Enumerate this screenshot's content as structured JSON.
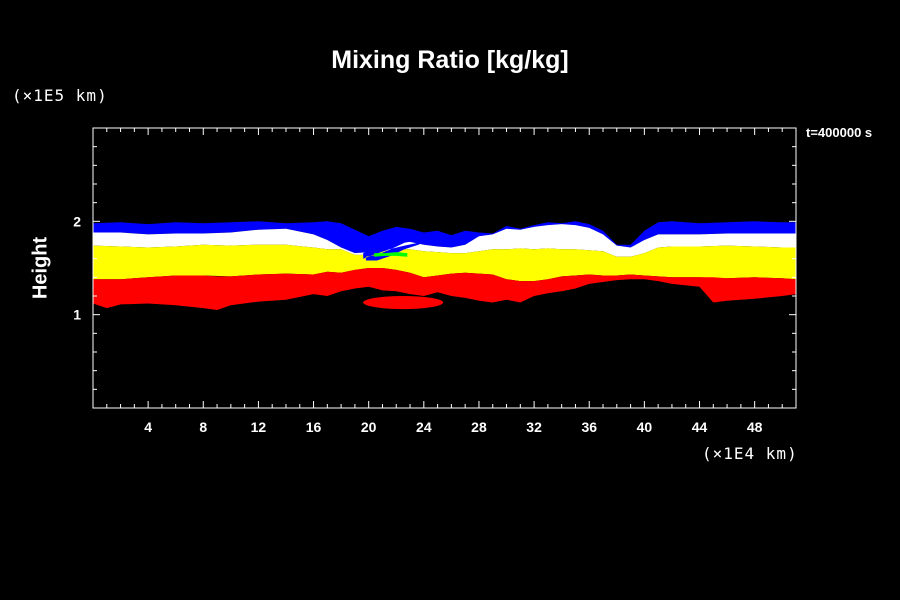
{
  "chart_data": {
    "type": "heatmap",
    "title": "Mixing Ratio [kg/kg]",
    "ylabel": "Height",
    "xlabel": "",
    "x_unit": "(×1E4 km)",
    "y_unit": "(×1E5 km)",
    "time_label": "t=400000 s",
    "xlim": [
      0,
      51
    ],
    "ylim": [
      0,
      3
    ],
    "x_ticks": [
      4,
      8,
      12,
      16,
      20,
      24,
      28,
      32,
      36,
      40,
      44,
      48
    ],
    "y_ticks": [
      1,
      2
    ],
    "background_color": "#000000",
    "bands": [
      {
        "color": "#0000ff",
        "x": [
          0,
          2,
          4,
          6,
          8,
          10,
          12,
          14,
          16,
          17,
          18,
          19,
          20,
          21,
          22,
          23,
          24,
          25,
          26,
          27,
          28,
          29,
          30,
          31,
          32,
          33,
          34,
          35,
          36,
          37,
          38,
          39,
          40,
          41,
          42,
          44,
          46,
          48,
          50,
          51
        ],
        "top": [
          1.98,
          1.99,
          1.97,
          1.99,
          1.98,
          1.99,
          2.0,
          1.98,
          1.99,
          2.0,
          1.98,
          1.91,
          1.84,
          1.9,
          1.94,
          1.92,
          1.88,
          1.9,
          1.85,
          1.9,
          1.88,
          1.87,
          1.95,
          1.92,
          1.96,
          1.99,
          1.98,
          2.0,
          1.97,
          1.9,
          1.75,
          1.75,
          1.9,
          1.99,
          2.0,
          1.98,
          1.99,
          2.0,
          1.99,
          1.99
        ],
        "bottom": [
          1.88,
          1.88,
          1.86,
          1.87,
          1.87,
          1.88,
          1.91,
          1.92,
          1.86,
          1.8,
          1.72,
          1.66,
          1.67,
          1.72,
          1.77,
          1.78,
          1.75,
          1.73,
          1.72,
          1.75,
          1.8,
          1.84,
          1.88,
          1.86,
          1.87,
          1.9,
          1.89,
          1.88,
          1.85,
          1.8,
          1.65,
          1.65,
          1.8,
          1.86,
          1.86,
          1.86,
          1.87,
          1.87,
          1.87,
          1.87
        ]
      },
      {
        "color": "#ffffff",
        "x": [
          0,
          2,
          4,
          6,
          8,
          10,
          12,
          14,
          16,
          17,
          18,
          19,
          20,
          21,
          22,
          23,
          24,
          25,
          26,
          27,
          28,
          29,
          30,
          31,
          32,
          33,
          34,
          35,
          36,
          37,
          38,
          39,
          40,
          41,
          42,
          44,
          46,
          48,
          50,
          51
        ],
        "top": [
          1.88,
          1.88,
          1.86,
          1.87,
          1.87,
          1.88,
          1.91,
          1.92,
          1.86,
          1.8,
          1.72,
          1.66,
          1.67,
          1.72,
          1.77,
          1.78,
          1.75,
          1.73,
          1.72,
          1.75,
          1.84,
          1.86,
          1.92,
          1.91,
          1.94,
          1.96,
          1.97,
          1.96,
          1.93,
          1.86,
          1.74,
          1.72,
          1.8,
          1.86,
          1.86,
          1.86,
          1.87,
          1.87,
          1.87,
          1.87
        ],
        "bottom": [
          1.74,
          1.73,
          1.72,
          1.73,
          1.75,
          1.74,
          1.75,
          1.75,
          1.72,
          1.7,
          1.7,
          1.64,
          1.64,
          1.68,
          1.7,
          1.7,
          1.68,
          1.67,
          1.66,
          1.66,
          1.68,
          1.7,
          1.7,
          1.71,
          1.7,
          1.71,
          1.7,
          1.7,
          1.69,
          1.68,
          1.62,
          1.62,
          1.66,
          1.72,
          1.73,
          1.73,
          1.74,
          1.73,
          1.72,
          1.72
        ]
      },
      {
        "color": "#ffff00",
        "x": [
          0,
          2,
          4,
          6,
          8,
          10,
          12,
          14,
          16,
          17,
          18,
          19,
          20,
          21,
          22,
          23,
          24,
          25,
          26,
          27,
          28,
          29,
          30,
          31,
          32,
          33,
          34,
          35,
          36,
          37,
          38,
          39,
          40,
          41,
          42,
          44,
          46,
          48,
          50,
          51
        ],
        "top": [
          1.74,
          1.73,
          1.72,
          1.73,
          1.75,
          1.74,
          1.75,
          1.75,
          1.72,
          1.7,
          1.7,
          1.64,
          1.64,
          1.68,
          1.7,
          1.7,
          1.68,
          1.67,
          1.66,
          1.66,
          1.68,
          1.7,
          1.7,
          1.71,
          1.7,
          1.71,
          1.7,
          1.7,
          1.69,
          1.68,
          1.62,
          1.62,
          1.66,
          1.72,
          1.73,
          1.73,
          1.74,
          1.73,
          1.72,
          1.72
        ],
        "bottom": [
          1.38,
          1.38,
          1.4,
          1.42,
          1.42,
          1.41,
          1.43,
          1.44,
          1.43,
          1.46,
          1.45,
          1.48,
          1.5,
          1.5,
          1.48,
          1.45,
          1.4,
          1.42,
          1.44,
          1.45,
          1.44,
          1.43,
          1.38,
          1.36,
          1.36,
          1.38,
          1.41,
          1.42,
          1.43,
          1.42,
          1.42,
          1.43,
          1.42,
          1.41,
          1.4,
          1.4,
          1.39,
          1.4,
          1.39,
          1.38
        ]
      },
      {
        "color": "#ff0000",
        "x": [
          0,
          1,
          2,
          4,
          6,
          8,
          9,
          10,
          12,
          14,
          16,
          17,
          18,
          19,
          20,
          21,
          22,
          23,
          24,
          25,
          26,
          27,
          28,
          29,
          30,
          31,
          32,
          33,
          34,
          35,
          36,
          37,
          38,
          39,
          40,
          41,
          42,
          44,
          45,
          46,
          48,
          50,
          51
        ],
        "top": [
          1.38,
          1.38,
          1.38,
          1.4,
          1.42,
          1.42,
          1.41,
          1.41,
          1.43,
          1.44,
          1.43,
          1.46,
          1.45,
          1.48,
          1.5,
          1.5,
          1.48,
          1.45,
          1.4,
          1.42,
          1.44,
          1.45,
          1.44,
          1.43,
          1.38,
          1.36,
          1.36,
          1.38,
          1.41,
          1.42,
          1.43,
          1.42,
          1.42,
          1.43,
          1.42,
          1.41,
          1.4,
          1.4,
          1.4,
          1.39,
          1.4,
          1.39,
          1.38
        ],
        "bottom": [
          1.12,
          1.07,
          1.11,
          1.12,
          1.1,
          1.07,
          1.05,
          1.1,
          1.14,
          1.16,
          1.22,
          1.2,
          1.25,
          1.28,
          1.3,
          1.26,
          1.25,
          1.22,
          1.2,
          1.24,
          1.2,
          1.18,
          1.15,
          1.13,
          1.16,
          1.13,
          1.2,
          1.23,
          1.25,
          1.28,
          1.33,
          1.35,
          1.37,
          1.38,
          1.38,
          1.36,
          1.33,
          1.3,
          1.13,
          1.15,
          1.17,
          1.2,
          1.22
        ]
      }
    ],
    "features": [
      {
        "kind": "blob",
        "color": "#ff0000",
        "center": [
          22.5,
          1.13
        ],
        "radius": [
          2.9,
          0.07
        ]
      },
      {
        "kind": "swirl",
        "color": "#0000ff",
        "x": [
          19.6,
          20.5,
          21.5,
          22.6,
          23.6,
          24.4,
          23.6,
          22.6,
          21.6,
          20.6,
          19.8
        ],
        "top": [
          1.66,
          1.72,
          1.8,
          1.85,
          1.86,
          1.84,
          1.8,
          1.77,
          1.7,
          1.64,
          1.62
        ],
        "bottom": [
          1.6,
          1.65,
          1.7,
          1.74,
          1.77,
          1.8,
          1.75,
          1.7,
          1.63,
          1.58,
          1.58
        ]
      },
      {
        "kind": "swirl",
        "color": "#00ff00",
        "x": [
          20.4,
          21.2,
          22.0,
          22.8
        ],
        "top": [
          1.66,
          1.66,
          1.67,
          1.66
        ],
        "bottom": [
          1.62,
          1.63,
          1.63,
          1.62
        ]
      }
    ]
  }
}
